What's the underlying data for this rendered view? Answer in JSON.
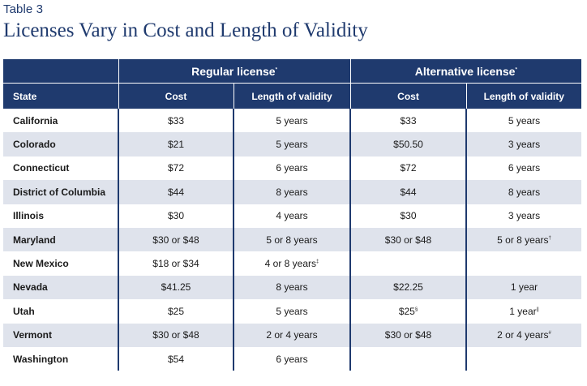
{
  "table_label": "Table 3",
  "title": "Licenses Vary in Cost and Length of Validity",
  "groups": {
    "regular": "Regular license",
    "regular_mark": "*",
    "alternative": "Alternative license",
    "alternative_mark": "*"
  },
  "columns": {
    "state": "State",
    "cost": "Cost",
    "length": "Length of validity",
    "alt_cost": "Cost",
    "alt_length": "Length of validity"
  },
  "rows": [
    {
      "state": "California",
      "cost": "$33",
      "length": "5 years",
      "length_mark": "",
      "alt_cost": "$33",
      "alt_cost_mark": "",
      "alt_length": "5 years",
      "alt_length_mark": ""
    },
    {
      "state": "Colorado",
      "cost": "$21",
      "length": "5 years",
      "length_mark": "",
      "alt_cost": "$50.50",
      "alt_cost_mark": "",
      "alt_length": "3 years",
      "alt_length_mark": ""
    },
    {
      "state": "Connecticut",
      "cost": "$72",
      "length": "6 years",
      "length_mark": "",
      "alt_cost": "$72",
      "alt_cost_mark": "",
      "alt_length": "6 years",
      "alt_length_mark": ""
    },
    {
      "state": "District of Columbia",
      "cost": "$44",
      "length": "8 years",
      "length_mark": "",
      "alt_cost": "$44",
      "alt_cost_mark": "",
      "alt_length": "8 years",
      "alt_length_mark": ""
    },
    {
      "state": "Illinois",
      "cost": "$30",
      "length": "4 years",
      "length_mark": "",
      "alt_cost": "$30",
      "alt_cost_mark": "",
      "alt_length": "3 years",
      "alt_length_mark": ""
    },
    {
      "state": "Maryland",
      "cost": "$30 or $48",
      "length": "5 or 8 years",
      "length_mark": "",
      "alt_cost": "$30 or $48",
      "alt_cost_mark": "",
      "alt_length": "5 or 8 years",
      "alt_length_mark": "†"
    },
    {
      "state": "New Mexico",
      "cost": "$18 or $34",
      "length": "4 or 8 years",
      "length_mark": "‡",
      "alt_cost": "",
      "alt_cost_mark": "",
      "alt_length": "",
      "alt_length_mark": ""
    },
    {
      "state": "Nevada",
      "cost": "$41.25",
      "length": "8 years",
      "length_mark": "",
      "alt_cost": "$22.25",
      "alt_cost_mark": "",
      "alt_length": "1 year",
      "alt_length_mark": ""
    },
    {
      "state": "Utah",
      "cost": "$25",
      "length": "5 years",
      "length_mark": "",
      "alt_cost": "$25",
      "alt_cost_mark": "§",
      "alt_length": "1 year",
      "alt_length_mark": "||"
    },
    {
      "state": "Vermont",
      "cost": "$30 or $48",
      "length": "2 or 4 years",
      "length_mark": "",
      "alt_cost": "$30 or $48",
      "alt_cost_mark": "",
      "alt_length": "2 or 4 years",
      "alt_length_mark": "#"
    },
    {
      "state": "Washington",
      "cost": "$54",
      "length": "6 years",
      "length_mark": "",
      "alt_cost": "",
      "alt_cost_mark": "",
      "alt_length": "",
      "alt_length_mark": ""
    }
  ]
}
